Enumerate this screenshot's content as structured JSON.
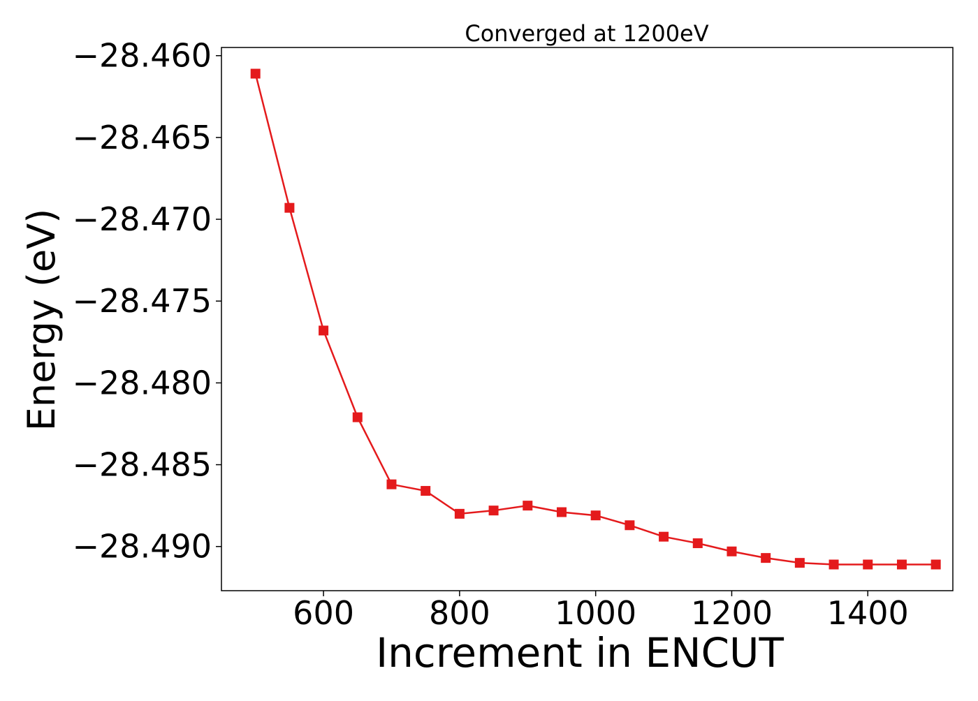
{
  "chart_data": {
    "type": "line",
    "title": "Converged at 1200eV",
    "xlabel": "Increment in ENCUT",
    "ylabel": "Energy (eV)",
    "xlim": [
      450,
      1525
    ],
    "ylim": [
      -28.4927,
      -28.4595
    ],
    "xticks": [
      600,
      800,
      1000,
      1200,
      1400
    ],
    "xtick_labels": [
      "600",
      "800",
      "1000",
      "1200",
      "1400"
    ],
    "yticks": [
      -28.46,
      -28.465,
      -28.47,
      -28.475,
      -28.48,
      -28.485,
      -28.49
    ],
    "ytick_labels": [
      "−28.460",
      "−28.465",
      "−28.470",
      "−28.475",
      "−28.480",
      "−28.485",
      "−28.490"
    ],
    "grid": false,
    "series": [
      {
        "color": "#e41a1c",
        "marker": "square",
        "x": [
          500,
          550,
          600,
          650,
          700,
          750,
          800,
          850,
          900,
          950,
          1000,
          1050,
          1100,
          1150,
          1200,
          1250,
          1300,
          1350,
          1400,
          1450,
          1500
        ],
        "y": [
          -28.4611,
          -28.4693,
          -28.4768,
          -28.4821,
          -28.4862,
          -28.4866,
          -28.488,
          -28.4878,
          -28.4875,
          -28.4879,
          -28.4881,
          -28.4887,
          -28.4894,
          -28.4898,
          -28.4903,
          -28.4907,
          -28.491,
          -28.4911,
          -28.4911,
          -28.4911,
          -28.4911
        ]
      }
    ]
  }
}
